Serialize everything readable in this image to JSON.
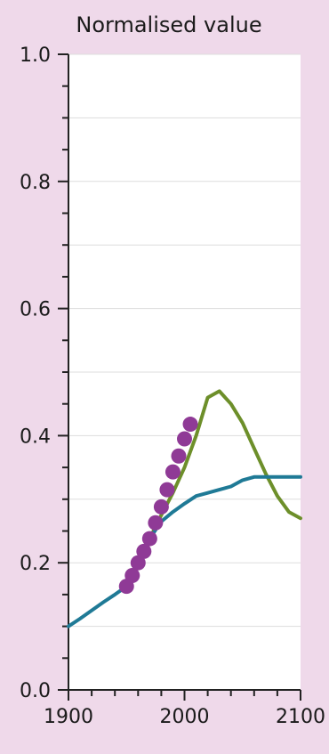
{
  "chart_data": {
    "type": "line",
    "title": "Normalised value",
    "xlabel": "",
    "ylabel": "",
    "xlim": [
      1900,
      2100
    ],
    "ylim": [
      0.0,
      1.0
    ],
    "x_ticks": [
      "1900",
      "2000",
      "2100"
    ],
    "y_ticks": [
      "0.0",
      "0.2",
      "0.4",
      "0.6",
      "0.8",
      "1.0"
    ],
    "grid": true,
    "colors": {
      "background": "#efd9ea",
      "plot_area": "#ffffff",
      "axis": "#222222",
      "grid": "#dddddd"
    },
    "series": [
      {
        "color": "#6d8f2a",
        "style": "line",
        "x": [
          1950,
          1960,
          1970,
          1980,
          1990,
          2000,
          2010,
          2020,
          2030,
          2040,
          2050,
          2060,
          2070,
          2080,
          2090,
          2100
        ],
        "y": [
          0.163,
          0.2,
          0.238,
          0.275,
          0.31,
          0.35,
          0.4,
          0.46,
          0.47,
          0.45,
          0.42,
          0.38,
          0.34,
          0.305,
          0.28,
          0.27
        ]
      },
      {
        "color": "#1f7a96",
        "style": "line",
        "x": [
          1900,
          1910,
          1920,
          1930,
          1940,
          1950,
          1960,
          1970,
          1980,
          1990,
          2000,
          2010,
          2020,
          2030,
          2040,
          2050,
          2060,
          2070,
          2080,
          2090,
          2100
        ],
        "y": [
          0.1,
          0.112,
          0.125,
          0.138,
          0.15,
          0.163,
          0.2,
          0.238,
          0.265,
          0.28,
          0.293,
          0.305,
          0.31,
          0.315,
          0.32,
          0.33,
          0.335,
          0.335,
          0.335,
          0.335,
          0.335
        ]
      },
      {
        "color": "#8f3a96",
        "style": "markers",
        "x": [
          1950,
          1955,
          1960,
          1965,
          1970,
          1975,
          1980,
          1985,
          1990,
          1995,
          2000,
          2005
        ],
        "y": [
          0.163,
          0.18,
          0.2,
          0.218,
          0.238,
          0.263,
          0.288,
          0.315,
          0.343,
          0.368,
          0.395,
          0.418
        ]
      }
    ]
  }
}
